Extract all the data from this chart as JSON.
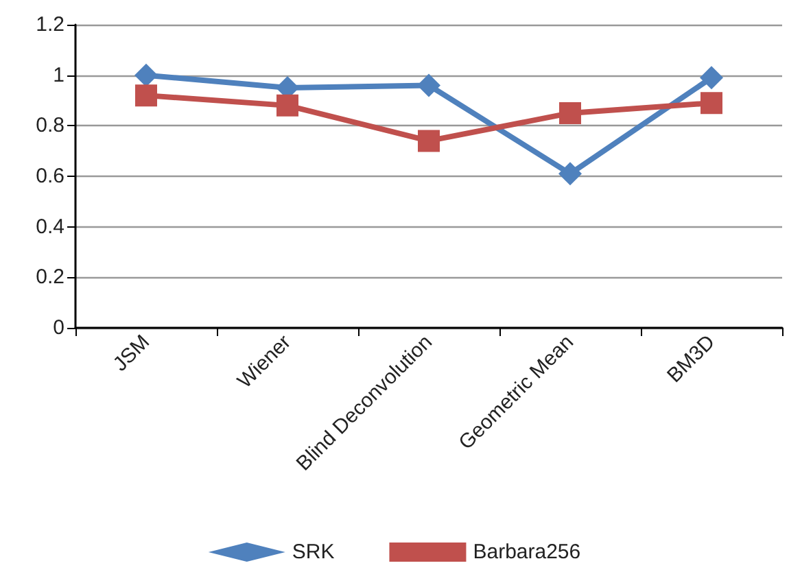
{
  "chart_data": {
    "type": "line",
    "categories": [
      "JSM",
      "Wiener",
      "Blind Deconvolution",
      "Geometric Mean",
      "BM3D"
    ],
    "series": [
      {
        "name": "SRK",
        "color": "#4f81bd",
        "marker": "diamond",
        "values": [
          1.0,
          0.95,
          0.96,
          0.61,
          0.99
        ]
      },
      {
        "name": "Barbara256",
        "color": "#c0504d",
        "marker": "square",
        "values": [
          0.92,
          0.88,
          0.74,
          0.85,
          0.89
        ]
      }
    ],
    "ylim": [
      0,
      1.2
    ],
    "yticks": [
      0,
      0.2,
      0.4,
      0.6,
      0.8,
      1,
      1.2
    ],
    "grid": "y",
    "legend": "bottom",
    "line_style": "solid"
  }
}
